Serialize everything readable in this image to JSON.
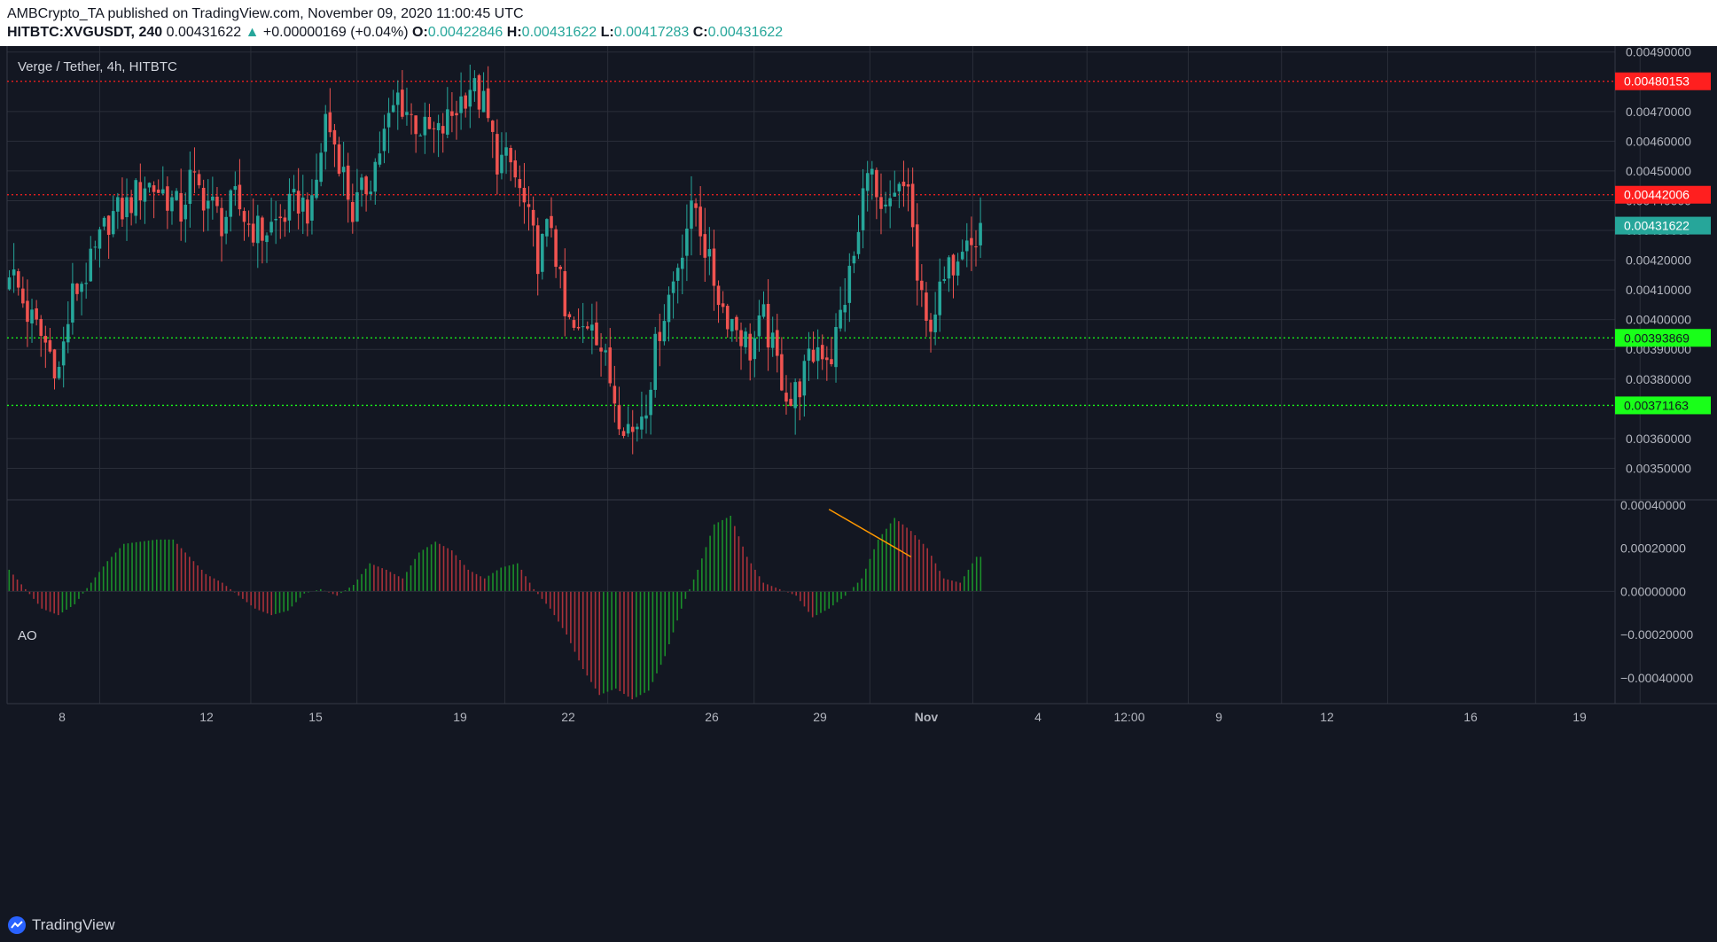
{
  "header": {
    "line1": "AMBCrypto_TA published on TradingView.com, November 09, 2020 11:00:45 UTC",
    "symbol": "HITBTC:XVGUSDT, 240",
    "last": "0.00431622",
    "arrow": "▲",
    "change": "+0.00000169 (+0.04%)",
    "o_label": "O:",
    "o": "0.00422846",
    "h_label": "H:",
    "h": "0.00431622",
    "l_label": "L:",
    "l": "0.00417283",
    "c_label": "C:",
    "c": "0.00431622"
  },
  "footer": {
    "brand": "TradingView",
    "logo_icon": "tradingview-logo-icon"
  },
  "colors": {
    "background": "#131722",
    "grid": "#2a2e39",
    "up": "#26a69a",
    "down": "#ef5350",
    "ao_up": "#26a69a",
    "ao_green": "#1b8f2a",
    "ao_red": "#a8313a",
    "resistance": "#ff1f1f",
    "support": "#19ff19",
    "trendline": "#ff9800",
    "text": "#d1d4dc"
  },
  "chart_data": [
    {
      "type": "candlestick",
      "title": "Verge / Tether, 4h, HITBTC",
      "x_ticks": [
        "8",
        "12",
        "15",
        "19",
        "22",
        "26",
        "29",
        "Nov",
        "4",
        "12:00",
        "9",
        "12",
        "16",
        "19"
      ],
      "y_ticks": [
        "0.00490000",
        "0.00470000",
        "0.00460000",
        "0.00450000",
        "0.00440000",
        "0.00430000",
        "0.00420000",
        "0.00410000",
        "0.00400000",
        "0.00390000",
        "0.00380000",
        "0.00360000",
        "0.00350000"
      ],
      "ylim": [
        0.0034,
        0.00492
      ],
      "horizontal_lines": [
        {
          "label": "0.00480153",
          "value": 0.00480153,
          "role": "resistance"
        },
        {
          "label": "0.00442006",
          "value": 0.00442006,
          "role": "resistance"
        },
        {
          "label": "0.00393869",
          "value": 0.00393869,
          "role": "support"
        },
        {
          "label": "0.00371163",
          "value": 0.00371163,
          "role": "support"
        }
      ],
      "last_price": {
        "label": "0.00431622",
        "value": 0.00431622
      },
      "close_path": [
        [
          0,
          0.00418
        ],
        [
          4,
          0.00402
        ],
        [
          8,
          0.00392
        ],
        [
          11,
          0.00383
        ],
        [
          14,
          0.00408
        ],
        [
          18,
          0.00418
        ],
        [
          22,
          0.00434
        ],
        [
          26,
          0.00438
        ],
        [
          30,
          0.00446
        ],
        [
          34,
          0.00443
        ],
        [
          38,
          0.00436
        ],
        [
          40,
          0.00447
        ],
        [
          44,
          0.0044
        ],
        [
          47,
          0.00433
        ],
        [
          50,
          0.0044
        ],
        [
          53,
          0.00432
        ],
        [
          56,
          0.00429
        ],
        [
          60,
          0.00434
        ],
        [
          64,
          0.0044
        ],
        [
          67,
          0.00436
        ],
        [
          70,
          0.00468
        ],
        [
          73,
          0.00455
        ],
        [
          76,
          0.00436
        ],
        [
          80,
          0.00448
        ],
        [
          83,
          0.00462
        ],
        [
          86,
          0.00475
        ],
        [
          89,
          0.00468
        ],
        [
          92,
          0.00463
        ],
        [
          95,
          0.00462
        ],
        [
          98,
          0.00469
        ],
        [
          102,
          0.00479
        ],
        [
          105,
          0.00472
        ],
        [
          108,
          0.00454
        ],
        [
          111,
          0.00452
        ],
        [
          114,
          0.00438
        ],
        [
          117,
          0.00421
        ],
        [
          120,
          0.00433
        ],
        [
          123,
          0.004
        ],
        [
          126,
          0.00394
        ],
        [
          129,
          0.00402
        ],
        [
          132,
          0.00385
        ],
        [
          135,
          0.00369
        ],
        [
          138,
          0.00362
        ],
        [
          141,
          0.00373
        ],
        [
          144,
          0.00398
        ],
        [
          147,
          0.00413
        ],
        [
          150,
          0.00432
        ],
        [
          152,
          0.00438
        ],
        [
          155,
          0.00418
        ],
        [
          158,
          0.00404
        ],
        [
          161,
          0.00398
        ],
        [
          164,
          0.0039
        ],
        [
          167,
          0.004
        ],
        [
          170,
          0.00385
        ],
        [
          173,
          0.00372
        ],
        [
          176,
          0.00382
        ],
        [
          179,
          0.00391
        ],
        [
          182,
          0.00388
        ],
        [
          185,
          0.00408
        ],
        [
          188,
          0.00428
        ],
        [
          190,
          0.00455
        ],
        [
          193,
          0.00432
        ],
        [
          196,
          0.0044
        ],
        [
          199,
          0.00446
        ],
        [
          201,
          0.00413
        ],
        [
          203,
          0.00397
        ],
        [
          206,
          0.00408
        ],
        [
          209,
          0.0042
        ],
        [
          212,
          0.00432
        ],
        [
          214,
          0.00424
        ],
        [
          215,
          0.00432
        ]
      ],
      "candles_total": 216,
      "x_axis_slots": 356
    },
    {
      "type": "histogram",
      "title": "AO",
      "y_ticks": [
        "0.00040000",
        "0.00020000",
        "0.00000000",
        "−0.00020000",
        "−0.00040000"
      ],
      "ylim": [
        -0.00052,
        0.00042
      ],
      "trendline": {
        "from": [
          200,
          0.00038
        ],
        "to": [
          220,
          0.00016
        ]
      },
      "values_path": [
        [
          0,
          0.0001
        ],
        [
          4,
          1e-05
        ],
        [
          8,
          -8e-05
        ],
        [
          12,
          -0.00011
        ],
        [
          16,
          -6e-05
        ],
        [
          20,
          4e-05
        ],
        [
          24,
          0.00014
        ],
        [
          28,
          0.00022
        ],
        [
          32,
          0.00023
        ],
        [
          36,
          0.00024
        ],
        [
          40,
          0.00024
        ],
        [
          44,
          0.00016
        ],
        [
          48,
          8e-05
        ],
        [
          52,
          4e-05
        ],
        [
          56,
          -2e-05
        ],
        [
          60,
          -8e-05
        ],
        [
          64,
          -0.00011
        ],
        [
          68,
          -9e-05
        ],
        [
          72,
          -1e-05
        ],
        [
          76,
          1e-05
        ],
        [
          80,
          -2e-05
        ],
        [
          84,
          3e-05
        ],
        [
          88,
          0.00013
        ],
        [
          92,
          0.0001
        ],
        [
          96,
          6e-05
        ],
        [
          100,
          0.00018
        ],
        [
          104,
          0.00023
        ],
        [
          108,
          0.00019
        ],
        [
          112,
          0.0001
        ],
        [
          116,
          6e-05
        ],
        [
          120,
          0.00011
        ],
        [
          124,
          0.00013
        ],
        [
          128,
          1e-05
        ],
        [
          132,
          -8e-05
        ],
        [
          136,
          -0.0002
        ],
        [
          140,
          -0.00036
        ],
        [
          144,
          -0.00048
        ],
        [
          148,
          -0.00045
        ],
        [
          152,
          -0.0005
        ],
        [
          156,
          -0.00046
        ],
        [
          160,
          -0.0003
        ],
        [
          164,
          -8e-05
        ],
        [
          168,
          0.0001
        ],
        [
          172,
          0.00031
        ],
        [
          176,
          0.00035
        ],
        [
          180,
          0.00016
        ],
        [
          184,
          4e-05
        ],
        [
          188,
          1e-05
        ],
        [
          192,
          -2e-05
        ],
        [
          196,
          -0.00012
        ],
        [
          200,
          -8e-05
        ],
        [
          204,
          -2e-05
        ],
        [
          208,
          6e-05
        ],
        [
          212,
          0.00024
        ],
        [
          216,
          0.00034
        ],
        [
          220,
          0.00028
        ],
        [
          224,
          0.0002
        ],
        [
          228,
          6e-05
        ],
        [
          232,
          4e-05
        ],
        [
          236,
          0.00016
        ]
      ],
      "bars_total": 238
    }
  ]
}
